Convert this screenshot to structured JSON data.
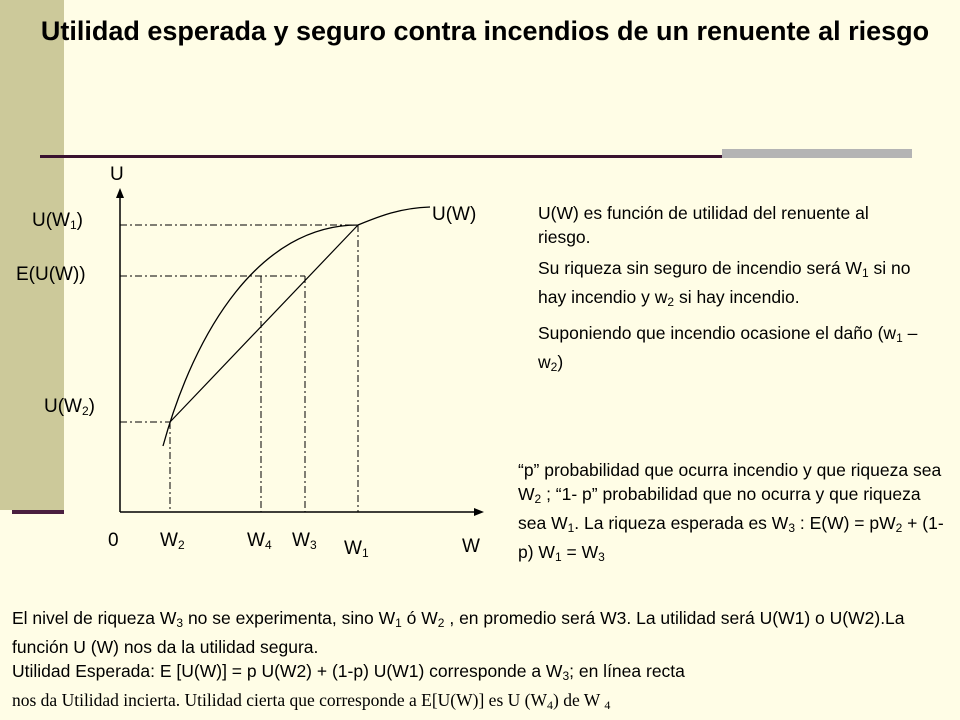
{
  "title": "Utilidad esperada y seguro contra incendios de un renuente al riesgo",
  "chart": {
    "y_axis_label": "U",
    "x_axis_label": "W",
    "origin_label": "0",
    "curve_label": "U(W)",
    "y_ticks": {
      "u_w1": {
        "base": "U(W",
        "sub": "1",
        "end": ")"
      },
      "e_u_w": "E(U(W))",
      "u_w2": {
        "base": "U(W",
        "sub": "2",
        "end": ")"
      }
    },
    "x_ticks": {
      "w2": {
        "base": "W",
        "sub": "2"
      },
      "w4": {
        "base": "W",
        "sub": "4"
      },
      "w3": {
        "base": "W",
        "sub": "3"
      },
      "w1": {
        "base": "W",
        "sub": "1"
      }
    }
  },
  "side_text": {
    "p1": "U(W) es función de utilidad del renuente al riesgo.",
    "p2": {
      "a": "Su riqueza sin seguro de incendio será W",
      "s1": "1",
      "b": " si no hay incendio y w",
      "s2": "2",
      "c": " si hay incendio."
    },
    "p3": {
      "a": "Suponiendo que incendio ocasione el daño  (w",
      "s1": "1",
      "b": " – w",
      "s2": "2",
      "c": ")"
    }
  },
  "prob_text": {
    "a": "“p” probabilidad que ocurra  incendio y que riqueza sea W",
    "s1": "2",
    "b": " ; “1- p” probabilidad que no ocurra y que riqueza sea W",
    "s2": "1",
    "c": ". La riqueza esperada es W",
    "s3": "3",
    "d": " : E(W) = pW",
    "s4": "2",
    "e": " + (1-p) W",
    "s5": "1",
    "f": " = W",
    "s6": "3"
  },
  "bottom_text": {
    "l1a": "El nivel de riqueza W",
    "l1s1": "3",
    "l1b": " no se experimenta, sino W",
    "l1s2": "1",
    "l1c": " ó W",
    "l1s3": "2",
    "l1d": " , en promedio será W3. La utilidad será U(W1) o U(W2).La función U (W) nos da la utilidad segura.",
    "l2a": "Utilidad Esperada: E [U(W)] = p U(W2) + (1-p) U(W1)  corresponde a W",
    "l2s": "3",
    "l2b": "; en línea recta",
    "l3a": "nos da Utilidad incierta. Utilidad cierta que corresponde  a E[U(W)] es U (W",
    "l3s": "4",
    "l3b": ") de W ",
    "l3s2": "4"
  }
}
